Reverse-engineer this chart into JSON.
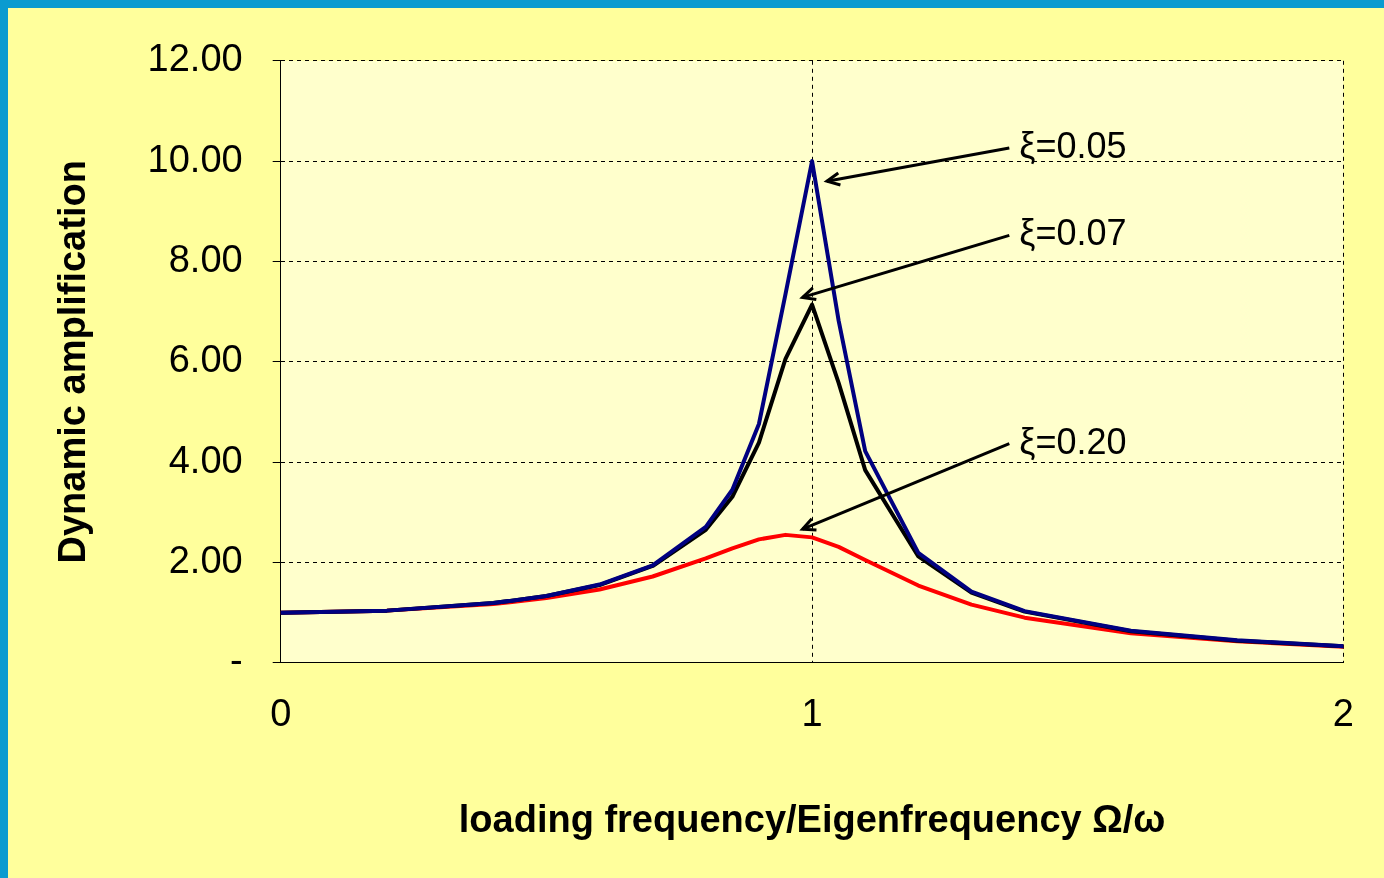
{
  "chart_data": {
    "type": "line",
    "xlabel": "loading frequency/Eigenfrequency Ω/ω",
    "ylabel": "Dynamic amplification",
    "x": [
      0,
      0.2,
      0.4,
      0.5,
      0.6,
      0.7,
      0.8,
      0.85,
      0.9,
      0.95,
      1.0,
      1.05,
      1.1,
      1.2,
      1.3,
      1.4,
      1.6,
      1.8,
      2.0
    ],
    "series": [
      {
        "color": "#000080",
        "values": [
          1.0,
          1.04,
          1.19,
          1.33,
          1.56,
          1.94,
          2.71,
          3.45,
          4.76,
          7.35,
          10.0,
          6.82,
          4.22,
          2.19,
          1.42,
          1.03,
          0.64,
          0.45,
          0.33
        ]
      },
      {
        "color": "#000000",
        "values": [
          1.0,
          1.04,
          1.19,
          1.33,
          1.55,
          1.93,
          2.65,
          3.31,
          4.39,
          6.06,
          7.14,
          5.58,
          3.84,
          2.12,
          1.4,
          1.02,
          0.63,
          0.44,
          0.33
        ]
      },
      {
        "color": "#ff0000",
        "values": [
          1.0,
          1.04,
          1.17,
          1.29,
          1.46,
          1.72,
          2.08,
          2.28,
          2.46,
          2.55,
          2.5,
          2.31,
          2.05,
          1.54,
          1.16,
          0.9,
          0.59,
          0.43,
          0.32
        ]
      }
    ],
    "xlim": [
      0,
      2
    ],
    "xticks": [
      0,
      1,
      2
    ],
    "ylim": [
      0,
      12
    ],
    "yticks": [
      {
        "value": 0,
        "label": "-"
      },
      {
        "value": 2,
        "label": "2.00"
      },
      {
        "value": 4,
        "label": "4.00"
      },
      {
        "value": 6,
        "label": "6.00"
      },
      {
        "value": 8,
        "label": "8.00"
      },
      {
        "value": 10,
        "label": "10.00"
      },
      {
        "value": 12,
        "label": "12.00"
      }
    ],
    "annotations": [
      "ξ=0.05",
      "ξ=0.07",
      "ξ=0.20"
    ],
    "grid": true,
    "legend": false,
    "marker": "none",
    "line_style": "solid"
  }
}
